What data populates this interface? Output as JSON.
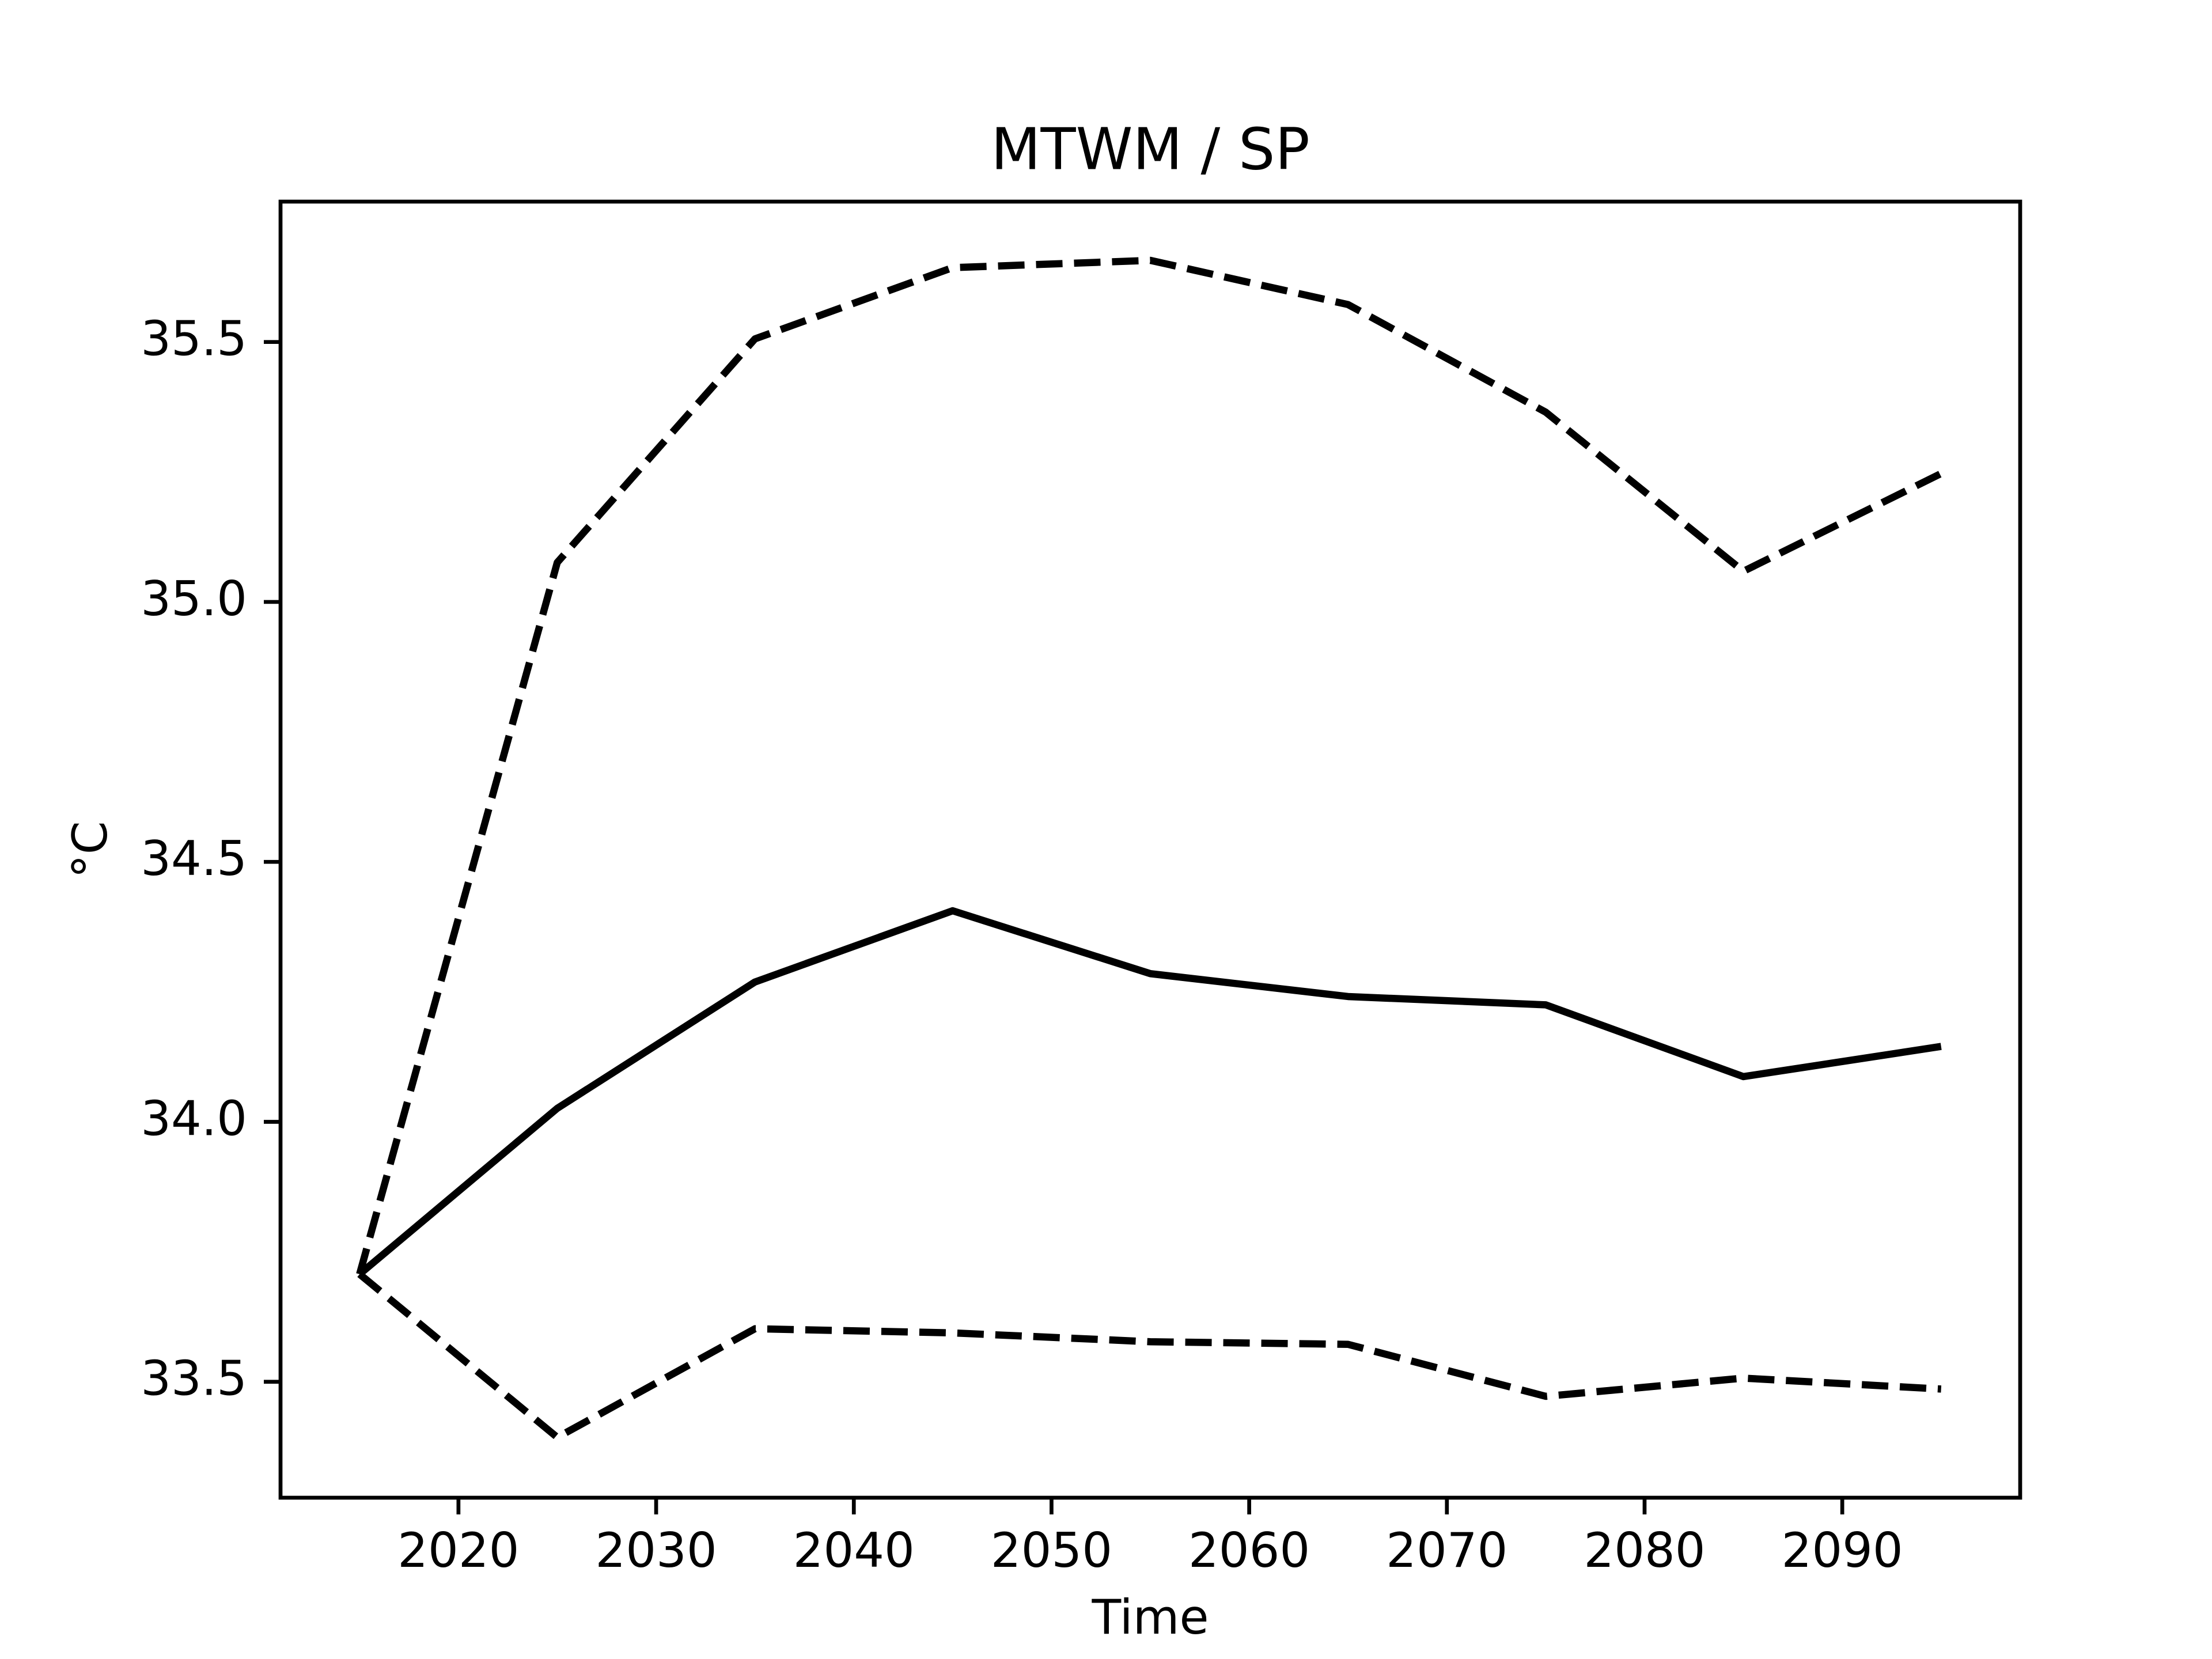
{
  "chart_data": {
    "type": "line",
    "title": "MTWM / SP",
    "x_label": "Time",
    "y_label": "°C",
    "x": [
      2015,
      2025,
      2035,
      2045,
      2055,
      2065,
      2075,
      2085,
      2095
    ],
    "series": [
      {
        "color": "#000000",
        "linestyle": "solid",
        "values": [
          33.707,
          34.026,
          34.269,
          34.406,
          34.285,
          34.241,
          34.225,
          34.087,
          34.145
        ]
      },
      {
        "color": "#000000",
        "linestyle": "dashed",
        "values": [
          33.707,
          35.076,
          35.506,
          35.643,
          35.657,
          35.572,
          35.365,
          35.059,
          35.247
        ]
      },
      {
        "color": "#000000",
        "linestyle": "dashed",
        "values": [
          33.707,
          33.393,
          33.602,
          33.594,
          33.577,
          33.572,
          33.472,
          33.507,
          33.486
        ]
      }
    ],
    "xlim": [
      2011,
      2099
    ],
    "xticks": [
      2020,
      2030,
      2040,
      2050,
      2060,
      2070,
      2080,
      2090
    ],
    "ylim": [
      33.277,
      35.77
    ],
    "yticks": [
      {
        "value": 33.5,
        "label": "33.5"
      },
      {
        "value": 34.0,
        "label": "34.0"
      },
      {
        "value": 34.5,
        "label": "34.5"
      },
      {
        "value": 35.0,
        "label": "35.0"
      },
      {
        "value": 35.5,
        "label": "35.5"
      }
    ],
    "grid": false
  }
}
